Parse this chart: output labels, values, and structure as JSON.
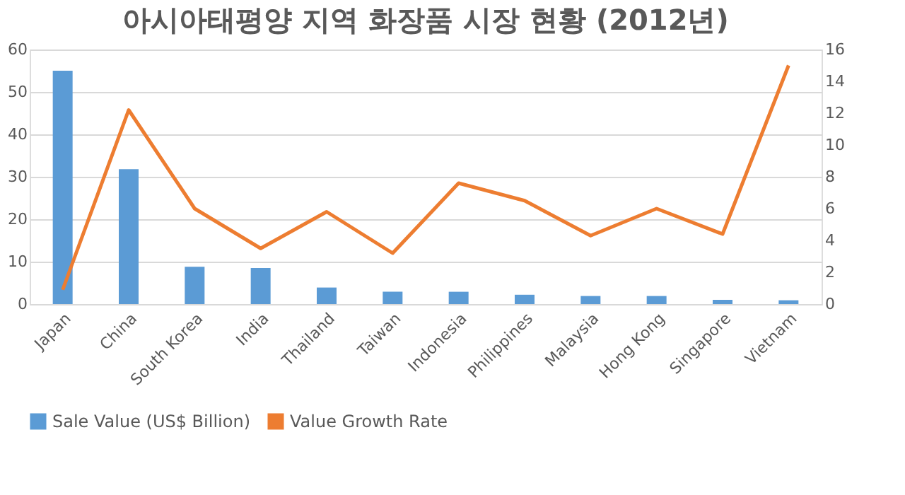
{
  "chart_data": {
    "type": "bar",
    "title": "아시아태평양 지역 화장품 시장 현황 (2012년)",
    "categories": [
      "Japan",
      "China",
      "South Korea",
      "India",
      "Thailand",
      "Taiwan",
      "Indonesia",
      "Philippines",
      "Malaysia",
      "Hong Kong",
      "Singapore",
      "Vietnam"
    ],
    "series": [
      {
        "name": "Sale Value (US$ Billion)",
        "color": "#5b9bd5",
        "values": [
          55,
          31.8,
          8.8,
          8.5,
          3.9,
          2.9,
          2.9,
          2.2,
          1.9,
          1.9,
          1.0,
          0.9
        ]
      },
      {
        "name": "Value Growth Rate",
        "color": "#ed7d31",
        "type": "line",
        "axis": "y2",
        "values": [
          0.9,
          12.2,
          6.0,
          3.5,
          5.8,
          3.2,
          7.6,
          6.5,
          4.3,
          6.0,
          4.4,
          15.0
        ]
      }
    ],
    "ylim": [
      0,
      60
    ],
    "yticks": [
      0,
      10,
      20,
      30,
      40,
      50,
      60
    ],
    "y2lim": [
      0,
      16
    ],
    "y2ticks": [
      0,
      2,
      4,
      6,
      8,
      10,
      12,
      14,
      16
    ],
    "grid": "y",
    "legend": "bottom"
  }
}
